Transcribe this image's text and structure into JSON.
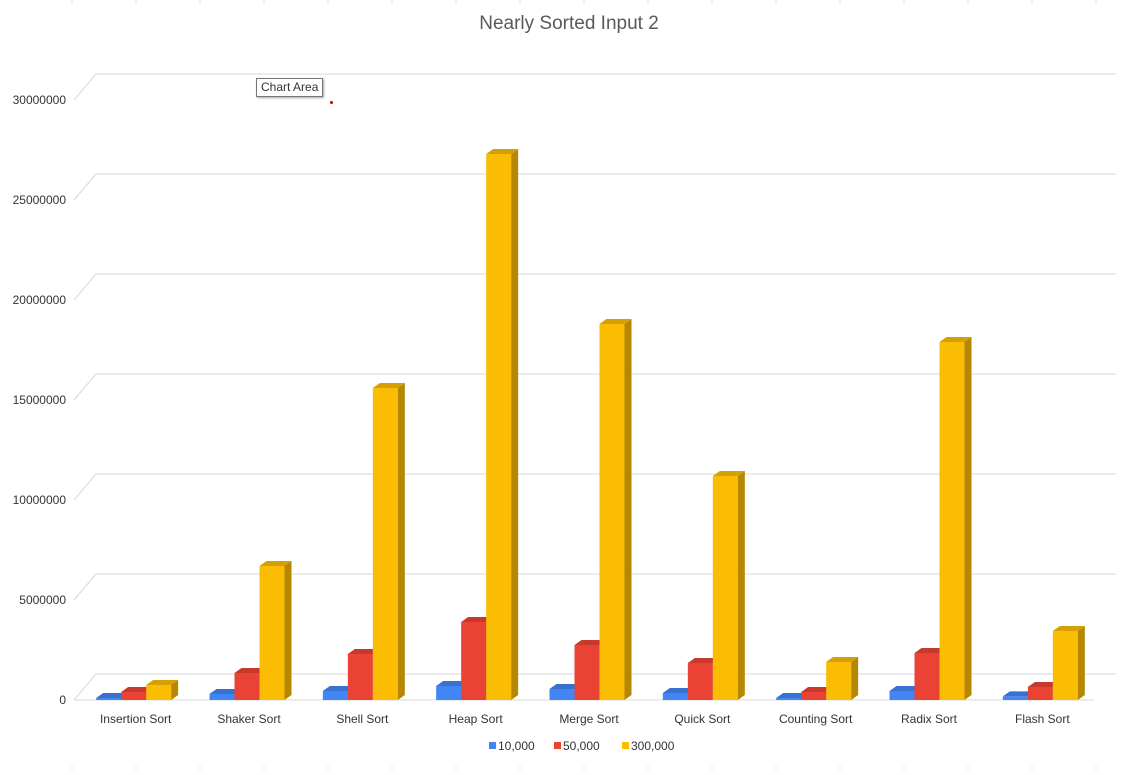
{
  "chart_data": {
    "type": "bar",
    "title": "Nearly Sorted Input 2",
    "xlabel": "",
    "ylabel": "",
    "ylim": [
      0,
      30000000
    ],
    "yticks": [
      0,
      5000000,
      10000000,
      15000000,
      20000000,
      25000000,
      30000000
    ],
    "ytick_labels": [
      "0",
      "5000000",
      "10000000",
      "15000000",
      "20000000",
      "25000000",
      "30000000"
    ],
    "grid": true,
    "legend_position": "bottom",
    "style": "3d-column",
    "categories": [
      "Insertion Sort",
      "Shaker Sort",
      "Shell Sort",
      "Heap Sort",
      "Merge Sort",
      "Quick Sort",
      "Counting Sort",
      "Radix Sort",
      "Flash Sort"
    ],
    "series": [
      {
        "name": "10,000",
        "color": "#4285f4",
        "values": [
          100000,
          300000,
          450000,
          700000,
          550000,
          350000,
          100000,
          450000,
          180000
        ]
      },
      {
        "name": "50,000",
        "color": "#ea4335",
        "values": [
          400000,
          1350000,
          2300000,
          3900000,
          2750000,
          1850000,
          400000,
          2350000,
          650000
        ]
      },
      {
        "name": "300,000",
        "color": "#fbbc04",
        "values": [
          750000,
          6700000,
          15600000,
          27300000,
          18800000,
          11200000,
          1900000,
          17900000,
          3450000
        ]
      }
    ]
  },
  "tooltip": {
    "text": "Chart Area"
  }
}
